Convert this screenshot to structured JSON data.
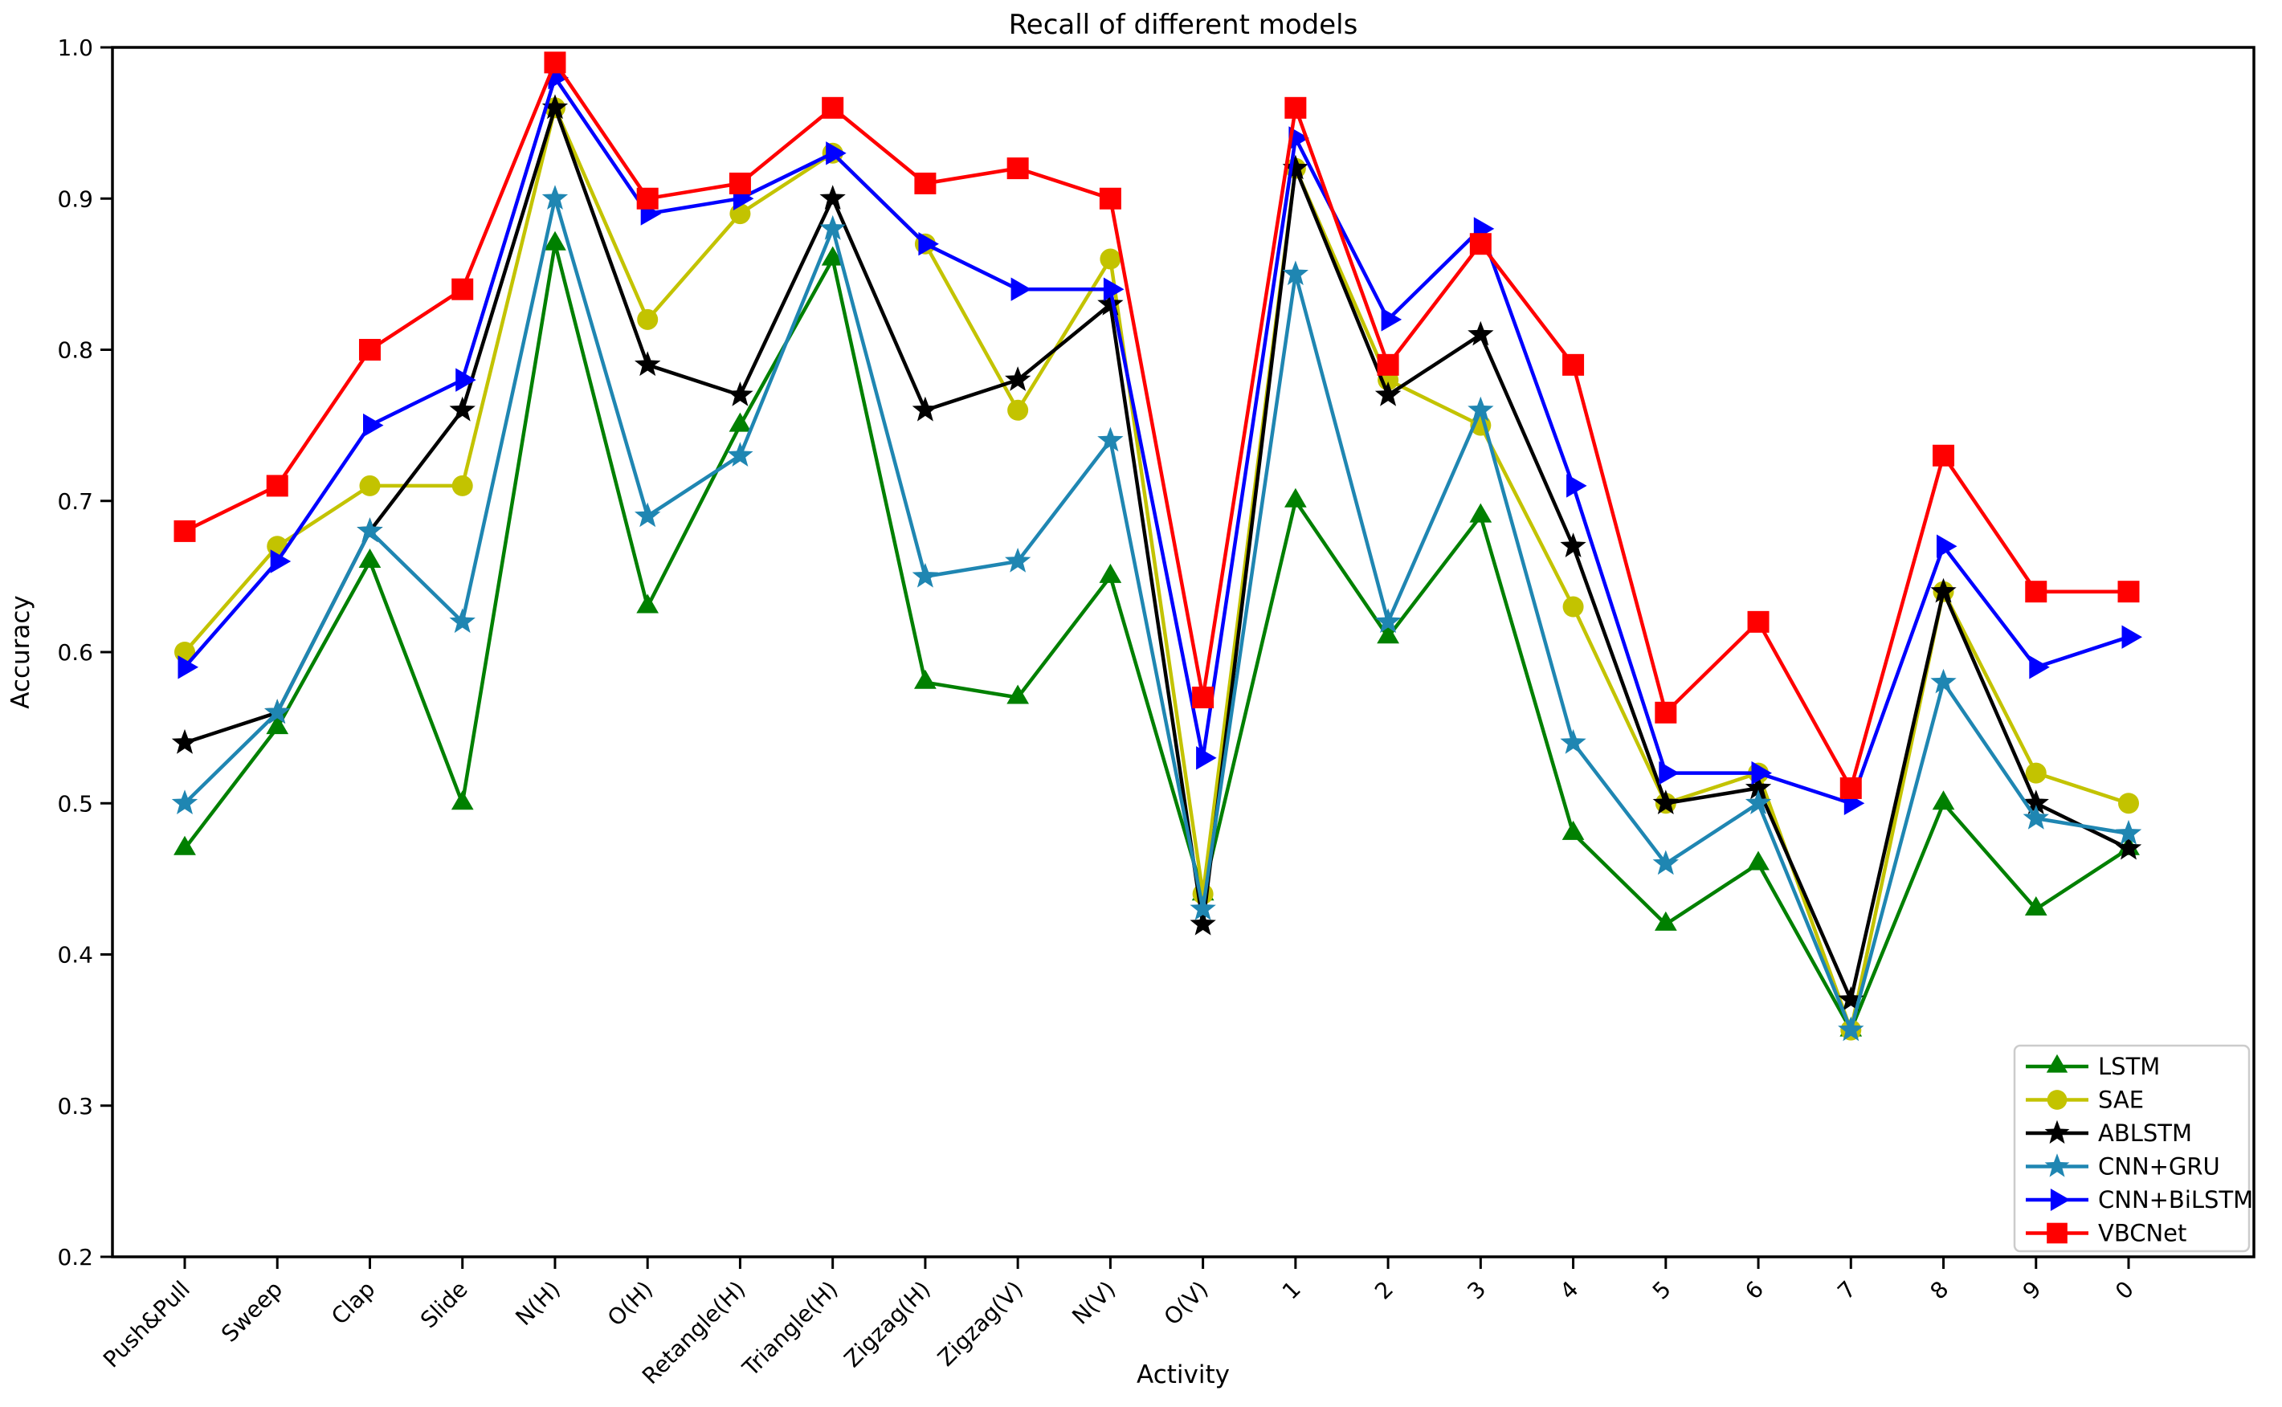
{
  "figure": {
    "title": "Recall of different models",
    "xlabel": "Activity",
    "ylabel": "Accuracy"
  },
  "chart_data": {
    "type": "line",
    "title": "Recall of different models",
    "xlabel": "Activity",
    "ylabel": "Accuracy",
    "ylim": [
      0.2,
      1.0
    ],
    "yticks": [
      0.2,
      0.3,
      0.4,
      0.5,
      0.6,
      0.7,
      0.8,
      0.9,
      1.0
    ],
    "grid": false,
    "legend_position": "lower-right",
    "x_tick_rotation_deg": 45,
    "categories": [
      "Push&Pull",
      "Sweep",
      "Clap",
      "Slide",
      "N(H)",
      "O(H)",
      "Retangle(H)",
      "Triangle(H)",
      "Zigzag(H)",
      "Zigzag(V)",
      "N(V)",
      "O(V)",
      "1",
      "2",
      "3",
      "4",
      "5",
      "6",
      "7",
      "8",
      "9",
      "0"
    ],
    "series": [
      {
        "name": "LSTM",
        "color": "#008000",
        "marker": "triangle-up",
        "values": [
          0.47,
          0.55,
          0.66,
          0.5,
          0.87,
          0.63,
          0.75,
          0.86,
          0.58,
          0.57,
          0.65,
          0.44,
          0.7,
          0.61,
          0.69,
          0.48,
          0.42,
          0.46,
          0.35,
          0.5,
          0.43,
          0.47
        ]
      },
      {
        "name": "SAE",
        "color": "#c3c300",
        "marker": "circle",
        "values": [
          0.6,
          0.67,
          0.71,
          0.71,
          0.96,
          0.82,
          0.89,
          0.93,
          0.87,
          0.76,
          0.86,
          0.44,
          0.92,
          0.78,
          0.75,
          0.63,
          0.5,
          0.52,
          0.35,
          0.64,
          0.52,
          0.5
        ]
      },
      {
        "name": "ABLSTM",
        "color": "#000000",
        "marker": "star",
        "values": [
          0.54,
          0.56,
          0.68,
          0.76,
          0.96,
          0.79,
          0.77,
          0.9,
          0.76,
          0.78,
          0.83,
          0.42,
          0.92,
          0.77,
          0.81,
          0.67,
          0.5,
          0.51,
          0.37,
          0.64,
          0.5,
          0.47
        ]
      },
      {
        "name": "CNN+GRU",
        "color": "#1f86b2",
        "marker": "star",
        "values": [
          0.5,
          0.56,
          0.68,
          0.62,
          0.9,
          0.69,
          0.73,
          0.88,
          0.65,
          0.66,
          0.74,
          0.43,
          0.85,
          0.62,
          0.76,
          0.54,
          0.46,
          0.5,
          0.35,
          0.58,
          0.49,
          0.48
        ]
      },
      {
        "name": "CNN+BiLSTM",
        "color": "#0000ff",
        "marker": "triangle-right",
        "values": [
          0.59,
          0.66,
          0.75,
          0.78,
          0.98,
          0.89,
          0.9,
          0.93,
          0.87,
          0.84,
          0.84,
          0.53,
          0.94,
          0.82,
          0.88,
          0.71,
          0.52,
          0.52,
          0.5,
          0.67,
          0.59,
          0.61
        ]
      },
      {
        "name": "VBCNet",
        "color": "#ff0000",
        "marker": "square",
        "values": [
          0.68,
          0.71,
          0.8,
          0.84,
          0.99,
          0.9,
          0.91,
          0.96,
          0.91,
          0.92,
          0.9,
          0.57,
          0.96,
          0.79,
          0.87,
          0.79,
          0.56,
          0.62,
          0.51,
          0.73,
          0.64,
          0.64
        ]
      }
    ]
  }
}
